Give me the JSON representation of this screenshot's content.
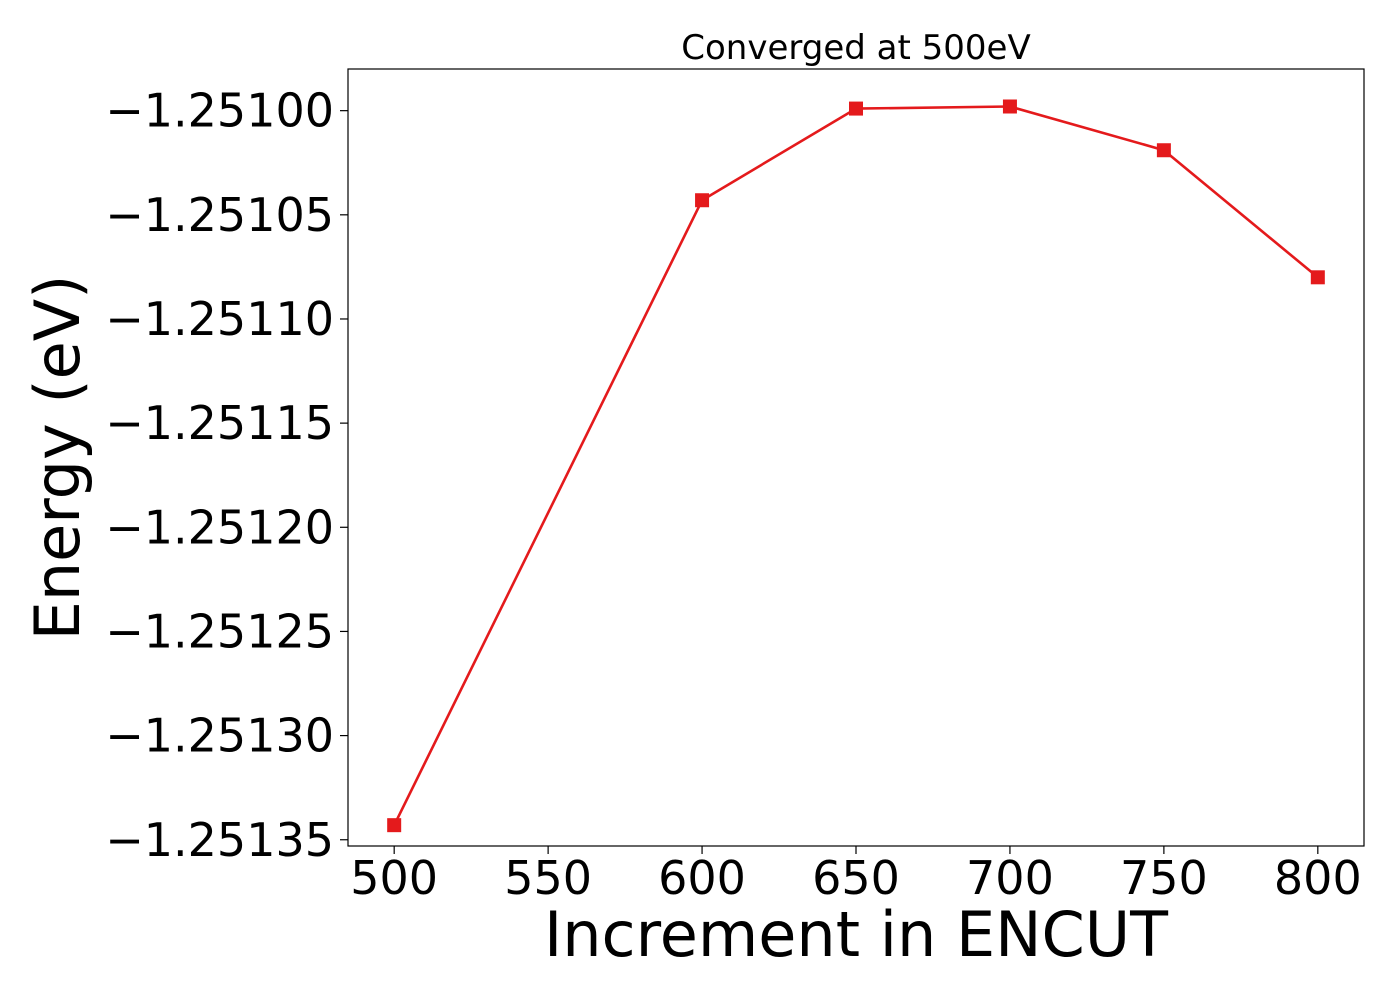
{
  "chart_data": {
    "type": "line",
    "title": "Converged at 500eV",
    "xlabel": "Increment in ENCUT",
    "ylabel": "Energy (eV)",
    "x": [
      500,
      600,
      650,
      700,
      750,
      800
    ],
    "series": [
      {
        "values": [
          -1.251343,
          -1.251043,
          -1.250999,
          -1.250998,
          -1.251019,
          -1.25108
        ],
        "color": "#e41a1c",
        "marker": "square"
      }
    ],
    "xlim": [
      485,
      815
    ],
    "ylim": [
      -1.251353,
      -1.25098
    ],
    "xticks": [
      500,
      550,
      600,
      650,
      700,
      750,
      800
    ],
    "xtick_labels": [
      "500",
      "550",
      "600",
      "650",
      "700",
      "750",
      "800"
    ],
    "yticks": [
      -1.25135,
      -1.2513,
      -1.25125,
      -1.2512,
      -1.25115,
      -1.2511,
      -1.25105,
      -1.251
    ],
    "ytick_labels": [
      "−1.25135",
      "−1.25130",
      "−1.25125",
      "−1.25120",
      "−1.25115",
      "−1.25110",
      "−1.25105",
      "−1.25100"
    ],
    "grid": false,
    "legend": "none"
  }
}
